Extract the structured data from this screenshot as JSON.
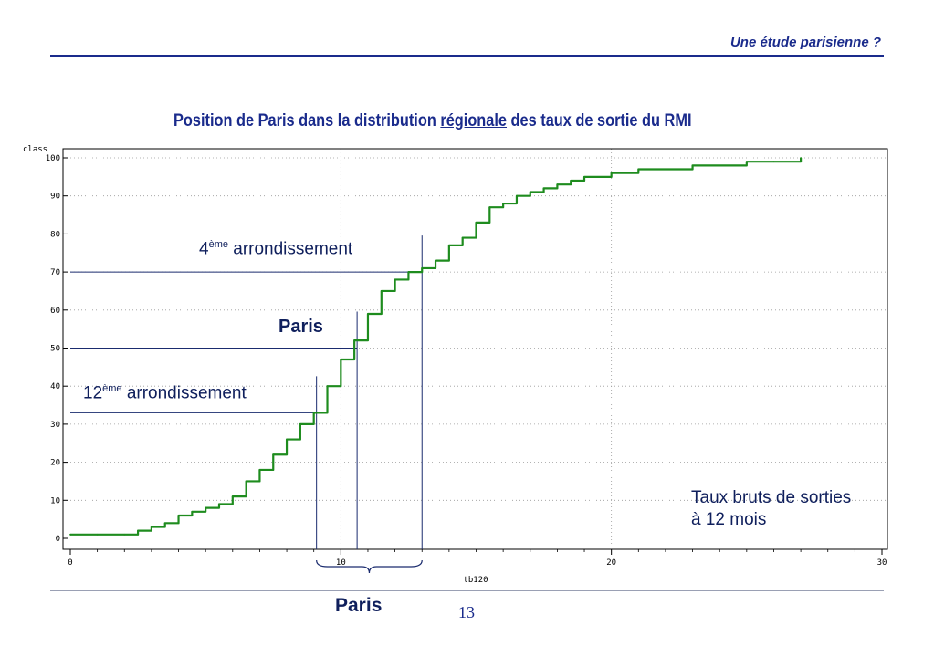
{
  "header": {
    "title": "Une étude parisienne ?"
  },
  "chart_title": {
    "before": "Position de Paris dans la distribution ",
    "underlined": "régionale",
    "after": " des taux de sortie du RMI"
  },
  "annotations": {
    "a4": {
      "number": "4",
      "sup": "ème",
      "text": " arrondissement"
    },
    "paris": "Paris",
    "a12": {
      "number": "12",
      "sup": "ème",
      "text": " arrondissement"
    },
    "note": "Taux bruts de sorties à 12 mois",
    "brace_label": "Paris"
  },
  "footer": {
    "page": "13"
  },
  "colors": {
    "series": "#1e8c1e",
    "guides": "#1a2b6e",
    "text": "#0f1f5c",
    "header": "#1a2b8c"
  },
  "chart_data": {
    "type": "line",
    "ylabel": "class",
    "xlabel": "tb120",
    "xlim": [
      0,
      30
    ],
    "ylim": [
      0,
      100
    ],
    "xticks": [
      0,
      10,
      20,
      30
    ],
    "yticks": [
      0,
      10,
      20,
      30,
      40,
      50,
      60,
      70,
      80,
      90,
      100
    ],
    "grid": true,
    "series": [
      {
        "x": [
          0,
          1,
          2,
          2.5,
          3,
          3.5,
          4,
          4.5,
          5,
          5.5,
          6,
          6.5,
          7,
          7.5,
          8,
          8.5,
          9,
          9.5,
          10,
          10.5,
          11,
          11.5,
          12,
          12.5,
          13,
          13.5,
          14,
          14.5,
          15,
          15.5,
          16,
          16.5,
          17,
          17.5,
          18,
          18.5,
          19,
          19.5,
          20,
          21,
          22,
          23,
          24,
          25,
          26,
          27
        ],
        "y": [
          1,
          1,
          1,
          2,
          3,
          4,
          6,
          7,
          8,
          9,
          11,
          15,
          18,
          22,
          26,
          30,
          33,
          40,
          47,
          52,
          59,
          65,
          68,
          70,
          71,
          73,
          77,
          79,
          83,
          87,
          88,
          90,
          91,
          92,
          93,
          94,
          95,
          95,
          96,
          97,
          97,
          98,
          98,
          99,
          99,
          100
        ]
      }
    ],
    "markers": [
      {
        "label": "12ème arrondissement",
        "x": 9.1,
        "y": 33
      },
      {
        "label": "Paris",
        "x": 10.6,
        "y": 50
      },
      {
        "label": "4ème arrondissement",
        "x": 13,
        "y": 70
      }
    ]
  }
}
